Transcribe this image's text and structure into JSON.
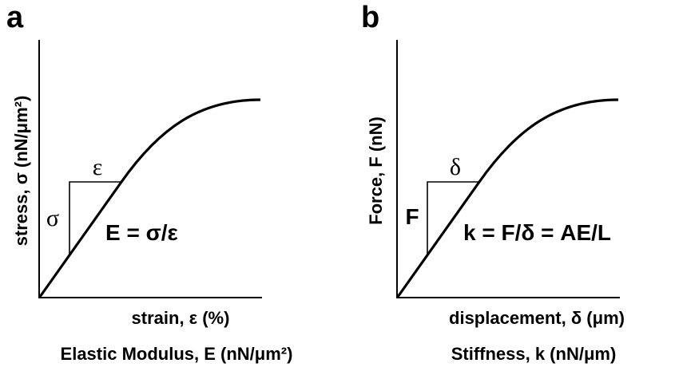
{
  "panels": [
    {
      "letter": "a",
      "y_axis_label": "stress, σ (nN/μm²)",
      "x_axis_label": "strain, ε (%)",
      "caption": "Elastic Modulus, E (nN/μm²)",
      "rise_symbol": "σ",
      "run_symbol": "ε",
      "equation": "E = σ/ε"
    },
    {
      "letter": "b",
      "y_axis_label": "Force, F (nN)",
      "x_axis_label": "displacement, δ (μm)",
      "caption": "Stiffness, k (nN/μm)",
      "rise_symbol": "F",
      "run_symbol": "δ",
      "equation": "k = F/δ = AE/L"
    }
  ]
}
